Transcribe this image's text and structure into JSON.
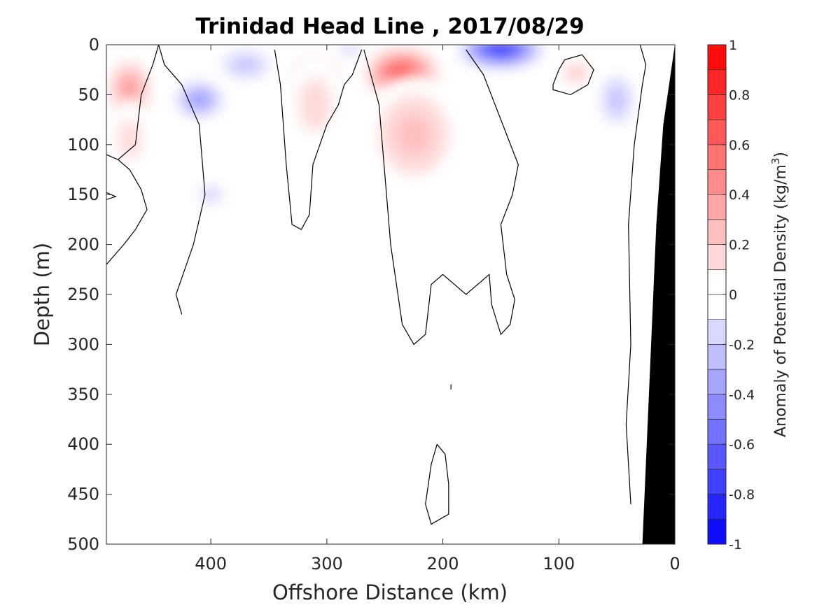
{
  "chart_data": {
    "type": "heatmap",
    "title": "Trinidad Head Line , 2017/08/29",
    "xlabel": "Offshore Distance (km)",
    "ylabel": "Depth (m)",
    "xlim": [
      490,
      0
    ],
    "x_reversed": true,
    "ylim": [
      0,
      500
    ],
    "y_reversed": true,
    "x_ticks": [
      "400",
      "300",
      "200",
      "100",
      "0"
    ],
    "x_tick_values": [
      400,
      300,
      200,
      100,
      0
    ],
    "y_ticks": [
      "0",
      "50",
      "100",
      "150",
      "200",
      "250",
      "300",
      "350",
      "400",
      "450",
      "500"
    ],
    "y_tick_values": [
      0,
      50,
      100,
      150,
      200,
      250,
      300,
      350,
      400,
      450,
      500
    ],
    "colorbar": {
      "label_main": "Anomaly of Potential Density (kg/m",
      "label_sup": "3",
      "label_close": ")",
      "range": [
        -1,
        1
      ],
      "step": 0.1,
      "tick_labels": [
        "1",
        "0.8",
        "0.6",
        "0.4",
        "0.2",
        "0",
        "-0.2",
        "-0.4",
        "-0.6",
        "-0.8",
        "-1"
      ],
      "tick_values": [
        1,
        0.8,
        0.6,
        0.4,
        0.2,
        0,
        -0.2,
        -0.4,
        -0.6,
        -0.8,
        -1
      ],
      "positive_color": "#ff0000",
      "negative_color": "#0000ff",
      "neutral_color": "#ffffff"
    },
    "bathymetry_color": "#000000",
    "grid": false,
    "anomaly_features": [
      {
        "sign": "positive",
        "x_center": 470,
        "depth_center": 45,
        "x_halfwidth": 22,
        "depth_halfwidth": 35,
        "peak": 0.5
      },
      {
        "sign": "positive",
        "x_center": 470,
        "depth_center": 95,
        "x_halfwidth": 20,
        "depth_halfwidth": 40,
        "peak": 0.2
      },
      {
        "sign": "negative",
        "x_center": 410,
        "depth_center": 55,
        "x_halfwidth": 25,
        "depth_halfwidth": 22,
        "peak": -0.45
      },
      {
        "sign": "negative",
        "x_center": 390,
        "depth_center": 200,
        "x_halfwidth": 50,
        "depth_halfwidth": 110,
        "peak": -0.15
      },
      {
        "sign": "negative",
        "x_center": 400,
        "depth_center": 150,
        "x_halfwidth": 15,
        "depth_halfwidth": 12,
        "peak": -0.3
      },
      {
        "sign": "negative",
        "x_center": 370,
        "depth_center": 20,
        "x_halfwidth": 30,
        "depth_halfwidth": 20,
        "peak": -0.25
      },
      {
        "sign": "positive",
        "x_center": 310,
        "depth_center": 35,
        "x_halfwidth": 22,
        "depth_halfwidth": 28,
        "peak": 0.7
      },
      {
        "sign": "positive",
        "x_center": 310,
        "depth_center": 60,
        "x_halfwidth": 28,
        "depth_halfwidth": 55,
        "peak": 0.2
      },
      {
        "sign": "negative",
        "x_center": 275,
        "depth_center": 170,
        "x_halfwidth": 14,
        "depth_halfwidth": 100,
        "peak": -0.15
      },
      {
        "sign": "negative",
        "x_center": 280,
        "depth_center": 5,
        "x_halfwidth": 15,
        "depth_halfwidth": 8,
        "peak": -0.3
      },
      {
        "sign": "positive",
        "x_center": 235,
        "depth_center": 30,
        "x_halfwidth": 35,
        "depth_halfwidth": 30,
        "peak": 0.85
      },
      {
        "sign": "positive",
        "x_center": 225,
        "depth_center": 90,
        "x_halfwidth": 45,
        "depth_halfwidth": 60,
        "peak": 0.25
      },
      {
        "sign": "negative",
        "x_center": 150,
        "depth_center": 5,
        "x_halfwidth": 40,
        "depth_halfwidth": 20,
        "peak": -1.0
      },
      {
        "sign": "negative",
        "x_center": 115,
        "depth_center": 80,
        "x_halfwidth": 25,
        "depth_halfwidth": 20,
        "peak": -0.15
      },
      {
        "sign": "positive",
        "x_center": 85,
        "depth_center": 28,
        "x_halfwidth": 18,
        "depth_halfwidth": 15,
        "peak": 0.35
      },
      {
        "sign": "negative",
        "x_center": 50,
        "depth_center": 55,
        "x_halfwidth": 20,
        "depth_halfwidth": 35,
        "peak": -0.35
      },
      {
        "sign": "negative",
        "x_center": 55,
        "depth_center": 210,
        "x_halfwidth": 10,
        "depth_halfwidth": 30,
        "peak": -0.15
      },
      {
        "sign": "negative",
        "x_center": 60,
        "depth_center": 148,
        "x_halfwidth": 10,
        "depth_halfwidth": 5,
        "peak": -0.15
      }
    ],
    "zero_contours": [
      {
        "name": "zero-contour-west",
        "points": [
          [
            490,
            220
          ],
          [
            475,
            200
          ],
          [
            465,
            185
          ],
          [
            455,
            165
          ],
          [
            460,
            145
          ],
          [
            470,
            125
          ],
          [
            480,
            115
          ],
          [
            490,
            110
          ]
        ]
      },
      {
        "name": "zero-contour-lens-left",
        "points": [
          [
            490,
            148
          ],
          [
            482,
            152
          ],
          [
            490,
            155
          ]
        ]
      },
      {
        "name": "zero-contour-east-of-west-lens",
        "points": [
          [
            480,
            115
          ],
          [
            465,
            100
          ],
          [
            460,
            50
          ],
          [
            450,
            20
          ],
          [
            445,
            0
          ]
        ]
      },
      {
        "name": "zero-contour-right-of-red-cell",
        "points": [
          [
            445,
            0
          ],
          [
            440,
            20
          ],
          [
            425,
            40
          ],
          [
            410,
            80
          ],
          [
            405,
            150
          ],
          [
            415,
            200
          ],
          [
            430,
            250
          ],
          [
            425,
            270
          ]
        ]
      },
      {
        "name": "zero-contour-finger-310",
        "points": [
          [
            345,
            5
          ],
          [
            340,
            40
          ],
          [
            335,
            120
          ],
          [
            330,
            180
          ],
          [
            322,
            185
          ],
          [
            315,
            170
          ],
          [
            312,
            120
          ],
          [
            300,
            80
          ],
          [
            290,
            60
          ],
          [
            285,
            40
          ],
          [
            278,
            30
          ],
          [
            270,
            5
          ]
        ]
      },
      {
        "name": "zero-contour-finger-200",
        "points": [
          [
            268,
            5
          ],
          [
            255,
            60
          ],
          [
            245,
            200
          ],
          [
            235,
            280
          ],
          [
            225,
            300
          ],
          [
            215,
            290
          ],
          [
            210,
            240
          ],
          [
            200,
            230
          ],
          [
            190,
            240
          ],
          [
            180,
            250
          ],
          [
            170,
            240
          ],
          [
            160,
            230
          ],
          [
            158,
            260
          ],
          [
            150,
            290
          ],
          [
            142,
            280
          ],
          [
            138,
            255
          ],
          [
            145,
            230
          ],
          [
            150,
            180
          ],
          [
            140,
            150
          ],
          [
            135,
            120
          ],
          [
            145,
            90
          ],
          [
            155,
            60
          ],
          [
            165,
            30
          ],
          [
            180,
            5
          ]
        ]
      },
      {
        "name": "zero-contour-east-lens",
        "points": [
          [
            105,
            40
          ],
          [
            100,
            25
          ],
          [
            95,
            15
          ],
          [
            80,
            10
          ],
          [
            70,
            25
          ],
          [
            75,
            40
          ],
          [
            90,
            50
          ],
          [
            105,
            45
          ],
          [
            105,
            40
          ]
        ]
      },
      {
        "name": "zero-contour-near-shore",
        "points": [
          [
            30,
            0
          ],
          [
            25,
            20
          ],
          [
            28,
            40
          ],
          [
            35,
            100
          ],
          [
            40,
            180
          ],
          [
            38,
            300
          ],
          [
            42,
            380
          ],
          [
            38,
            460
          ]
        ]
      },
      {
        "name": "zero-contour-deep-loop",
        "points": [
          [
            205,
            400
          ],
          [
            210,
            420
          ],
          [
            215,
            460
          ],
          [
            210,
            480
          ],
          [
            195,
            470
          ],
          [
            195,
            440
          ],
          [
            198,
            410
          ],
          [
            205,
            400
          ]
        ]
      },
      {
        "name": "zero-contour-deep-tick",
        "points": [
          [
            193,
            340
          ],
          [
            193,
            345
          ]
        ]
      }
    ],
    "bathymetry_polygon": [
      [
        0,
        0
      ],
      [
        0,
        500
      ],
      [
        28,
        500
      ],
      [
        16,
        180
      ],
      [
        10,
        80
      ]
    ]
  }
}
